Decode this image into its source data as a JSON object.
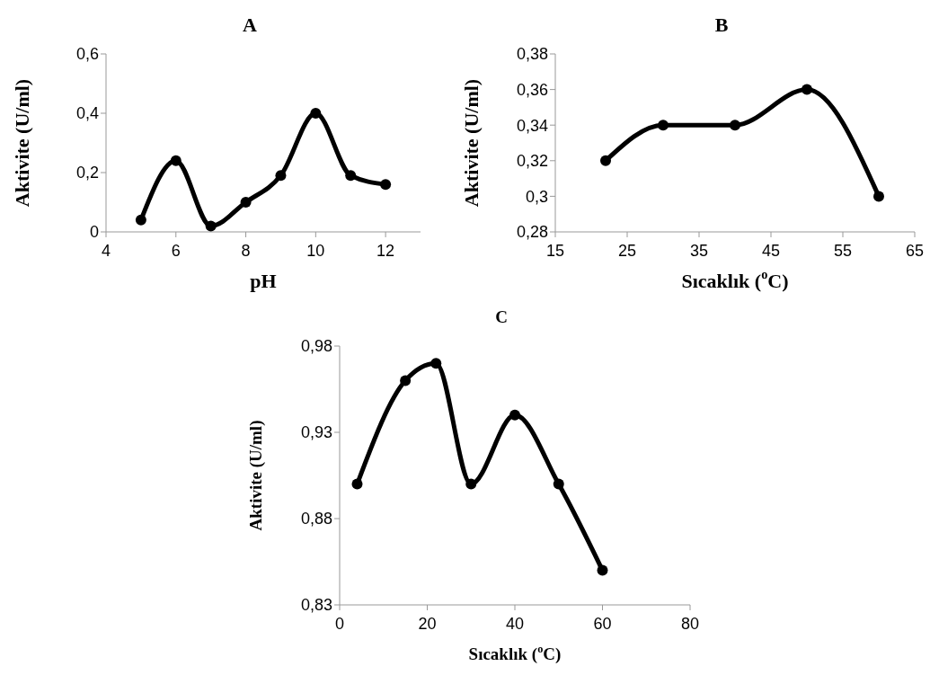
{
  "chart_data": [
    {
      "type": "line",
      "title": "A",
      "xlabel": "pH",
      "ylabel": "Aktivite (U/ml)",
      "x": [
        5,
        6,
        7,
        8,
        9,
        10,
        11,
        12
      ],
      "marker": "circle",
      "line_style": "solid",
      "series": [
        {
          "color": "#000000",
          "values": [
            0.04,
            0.24,
            0.02,
            0.1,
            0.19,
            0.4,
            0.19,
            0.16
          ]
        }
      ],
      "xlim": [
        4,
        13
      ],
      "xticks": [
        4,
        6,
        8,
        10,
        12
      ],
      "ylim": [
        0,
        0.6
      ],
      "yticks": [
        0,
        {
          "value": 0.2,
          "label": "0,2"
        },
        {
          "value": 0.4,
          "label": "0,4"
        },
        {
          "value": 0.6,
          "label": "0,6"
        }
      ]
    },
    {
      "type": "line",
      "title": "B",
      "xlabel": "Sıcaklık ($^{o}$C)",
      "ylabel": "Aktivite (U/ml)",
      "x": [
        22,
        30,
        40,
        50,
        60
      ],
      "marker": "circle",
      "line_style": "solid",
      "series": [
        {
          "color": "#000000",
          "values": [
            0.32,
            0.34,
            0.34,
            0.36,
            0.3
          ]
        }
      ],
      "xlim": [
        15,
        65
      ],
      "xticks": [
        15,
        25,
        35,
        45,
        55,
        65
      ],
      "ylim": [
        0.28,
        0.38
      ],
      "yticks": [
        {
          "value": 0.28,
          "label": "0,28"
        },
        {
          "value": 0.3,
          "label": "0,3"
        },
        {
          "value": 0.32,
          "label": "0,32"
        },
        {
          "value": 0.34,
          "label": "0,34"
        },
        {
          "value": 0.36,
          "label": "0,36"
        },
        {
          "value": 0.38,
          "label": "0,38"
        }
      ]
    },
    {
      "type": "line",
      "title": "C",
      "xlabel": "Sıcaklık ($^{o}$C)",
      "ylabel": "Aktivite (U/ml)",
      "x": [
        4,
        15,
        22,
        30,
        40,
        50,
        60
      ],
      "marker": "circle",
      "line_style": "solid",
      "series": [
        {
          "color": "#000000",
          "values": [
            0.9,
            0.96,
            0.97,
            0.9,
            0.94,
            0.9,
            0.85
          ]
        }
      ],
      "xlim": [
        0,
        80
      ],
      "xticks": [
        0,
        20,
        40,
        60,
        80
      ],
      "ylim": [
        0.83,
        0.98
      ],
      "yticks": [
        {
          "value": 0.83,
          "label": "0,83"
        },
        {
          "value": 0.88,
          "label": "0,88"
        },
        {
          "value": 0.93,
          "label": "0,93"
        },
        {
          "value": 0.98,
          "label": "0,98"
        }
      ]
    }
  ]
}
